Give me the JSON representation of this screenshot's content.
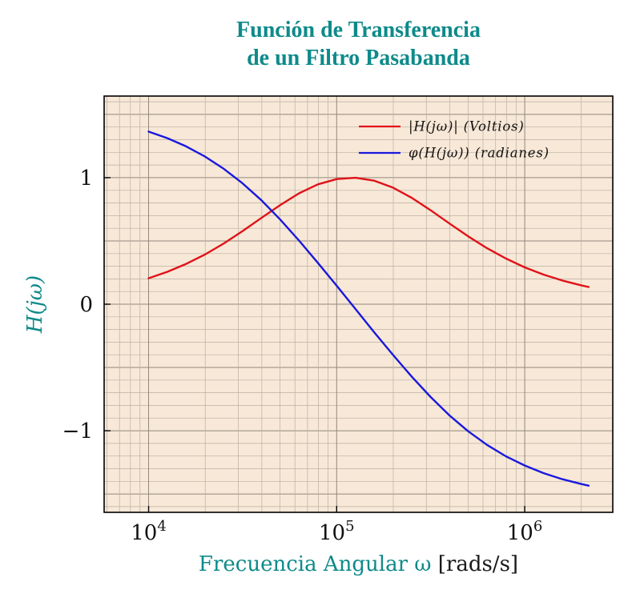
{
  "chart_data": {
    "type": "line",
    "title_lines": [
      "Función de Transferencia",
      "de un Filtro Pasabanda"
    ],
    "xlabel": "Frecuencia Angular ω",
    "xlabel_unit": "[rads/s]",
    "ylabel": "H(jω)",
    "x_scale": "log",
    "xlim": [
      5800,
      2940000
    ],
    "ylim": [
      -1.645,
      1.645
    ],
    "x_ticks": [
      {
        "v": 10000,
        "base": "10",
        "exp": "4"
      },
      {
        "v": 100000,
        "base": "10",
        "exp": "5"
      },
      {
        "v": 1000000,
        "base": "10",
        "exp": "6"
      }
    ],
    "y_ticks": [
      {
        "v": 1,
        "label": "1"
      },
      {
        "v": 0,
        "label": "0"
      },
      {
        "v": -1,
        "label": "−1"
      }
    ],
    "grid": {
      "y_minor_step": 0.1,
      "y_major_step": 0.5,
      "x_minor": "log-decade-subdivisions",
      "visible": true
    },
    "legend_position": "top-right-inside",
    "colors": {
      "accent_teal": "#0e8a8a",
      "plot_bg": "#f8e8d7",
      "grid_minor": "#b9b0a4",
      "grid_major": "#90887c",
      "magnitude_red": "#e01219",
      "phase_blue": "#1919dd",
      "text": "#111111",
      "border": "#000000"
    },
    "series": [
      {
        "name": "|H(jω)| (Voltios)",
        "color": "#e01219",
        "x": [
          10000,
          12589,
          15849,
          19953,
          25119,
          31623,
          39811,
          50119,
          63096,
          79433,
          100000,
          125893,
          158489,
          199526,
          251189,
          316228,
          398107,
          501187,
          630957,
          794328,
          1000000,
          1258925,
          1584893,
          1995262,
          2187762
        ],
        "y": [
          0.205,
          0.256,
          0.319,
          0.393,
          0.48,
          0.578,
          0.682,
          0.784,
          0.876,
          0.947,
          0.989,
          0.999,
          0.976,
          0.921,
          0.84,
          0.742,
          0.638,
          0.536,
          0.442,
          0.361,
          0.291,
          0.234,
          0.187,
          0.149,
          0.136
        ]
      },
      {
        "name": "φ(H(jω)) (radianes)",
        "color": "#1919dd",
        "x": [
          10000,
          12589,
          15849,
          19953,
          25119,
          31623,
          39811,
          50119,
          63096,
          79433,
          100000,
          125893,
          158489,
          199526,
          251189,
          316228,
          398107,
          501187,
          630957,
          794328,
          1000000,
          1258925,
          1584893,
          1995262,
          2187762
        ],
        "y": [
          1.364,
          1.312,
          1.247,
          1.167,
          1.07,
          0.955,
          0.821,
          0.669,
          0.503,
          0.327,
          0.146,
          -0.038,
          -0.222,
          -0.401,
          -0.574,
          -0.734,
          -0.879,
          -1.005,
          -1.112,
          -1.202,
          -1.275,
          -1.335,
          -1.383,
          -1.421,
          -1.434
        ]
      }
    ]
  }
}
